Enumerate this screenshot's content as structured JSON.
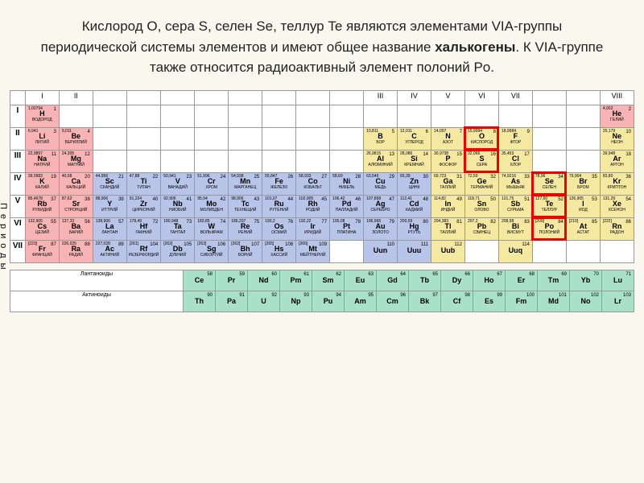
{
  "header": {
    "text_pre": "Кислород O, сера S, селен Se, теллур Te являются элементами VIA-группы периодической системы элементов и имеют общее название ",
    "bold": "халькогены",
    "text_post": ". К VIA-группе также относится радиоактивный элемент полоний Po."
  },
  "groups": [
    "I",
    "II",
    "III",
    "IV",
    "V",
    "VI",
    "VII",
    "VIII"
  ],
  "side_label": "Периоды",
  "lanthanide_label": "Лантаноиды",
  "actinide_label": "Актиноиды",
  "highlighted": [
    "O",
    "S",
    "Se",
    "Te",
    "Po"
  ],
  "colors": {
    "red": "#f8b4b4",
    "yel": "#f5e8a0",
    "blu": "#b8c4e8",
    "grn": "#a8e0c8",
    "highlight": "#e00",
    "bg": "#faf7ee"
  },
  "periods": [
    {
      "n": "I",
      "cells": [
        {
          "s": "H",
          "z": 1,
          "m": "1,00794",
          "n": "ВОДОРОД",
          "c": "red"
        },
        null,
        null,
        null,
        null,
        null,
        null,
        null,
        null,
        null,
        null,
        null,
        null,
        null,
        null,
        null,
        null,
        {
          "s": "He",
          "z": 2,
          "m": "4,002",
          "n": "ГЕЛИЙ",
          "c": "red"
        }
      ]
    },
    {
      "n": "II",
      "cells": [
        {
          "s": "Li",
          "z": 3,
          "m": "6,941",
          "n": "ЛИТИЙ",
          "c": "red"
        },
        {
          "s": "Be",
          "z": 4,
          "m": "9,011",
          "n": "БЕРИЛЛИЙ",
          "c": "red"
        },
        null,
        null,
        null,
        null,
        null,
        null,
        null,
        null,
        {
          "s": "B",
          "z": 5,
          "m": "10,811",
          "n": "БОР",
          "c": "yel"
        },
        {
          "s": "C",
          "z": 6,
          "m": "12,011",
          "n": "УГЛЕРОД",
          "c": "yel"
        },
        {
          "s": "N",
          "z": 7,
          "m": "14,007",
          "n": "АЗОТ",
          "c": "yel"
        },
        {
          "s": "O",
          "z": 8,
          "m": "15,9994",
          "n": "КИСЛОРОД",
          "c": "yel"
        },
        {
          "s": "F",
          "z": 9,
          "m": "18,9984",
          "n": "ФТОР",
          "c": "yel"
        },
        null,
        null,
        {
          "s": "Ne",
          "z": 10,
          "m": "20,179",
          "n": "НЕОН",
          "c": "yel"
        }
      ]
    },
    {
      "n": "III",
      "cells": [
        {
          "s": "Na",
          "z": 11,
          "m": "22,9897",
          "n": "НАТРИЙ",
          "c": "red"
        },
        {
          "s": "Mg",
          "z": 12,
          "m": "24,305",
          "n": "МАГНИЙ",
          "c": "red"
        },
        null,
        null,
        null,
        null,
        null,
        null,
        null,
        null,
        {
          "s": "Al",
          "z": 13,
          "m": "26,9815",
          "n": "АЛЮМИНИЙ",
          "c": "yel"
        },
        {
          "s": "Si",
          "z": 14,
          "m": "28,086",
          "n": "КРЕМНИЙ",
          "c": "yel"
        },
        {
          "s": "P",
          "z": 15,
          "m": "30,9738",
          "n": "ФОСФОР",
          "c": "yel"
        },
        {
          "s": "S",
          "z": 16,
          "m": "32,066",
          "n": "СЕРА",
          "c": "yel"
        },
        {
          "s": "Cl",
          "z": 17,
          "m": "35,453",
          "n": "ХЛОР",
          "c": "yel"
        },
        null,
        null,
        {
          "s": "Ar",
          "z": 18,
          "m": "39,948",
          "n": "АРГОН",
          "c": "yel"
        }
      ]
    },
    {
      "n": "IV",
      "cells": [
        {
          "s": "K",
          "z": 19,
          "m": "39,0983",
          "n": "КАЛИЙ",
          "c": "red"
        },
        {
          "s": "Ca",
          "z": 20,
          "m": "40,08",
          "n": "КАЛЬЦИЙ",
          "c": "red"
        },
        {
          "s": "Sc",
          "z": 21,
          "m": "44,956",
          "n": "СКАНДИЙ",
          "c": "blu"
        },
        {
          "s": "Ti",
          "z": 22,
          "m": "47,88",
          "n": "ТИТАН",
          "c": "blu"
        },
        {
          "s": "V",
          "z": 23,
          "m": "50,941",
          "n": "ВАНАДИЙ",
          "c": "blu"
        },
        {
          "s": "Cr",
          "z": 24,
          "m": "51,996",
          "n": "ХРОМ",
          "c": "blu"
        },
        {
          "s": "Mn",
          "z": 25,
          "m": "54,938",
          "n": "МАРГАНЕЦ",
          "c": "blu"
        },
        {
          "s": "Fe",
          "z": 26,
          "m": "55,847",
          "n": "ЖЕЛЕЗО",
          "c": "blu"
        },
        {
          "s": "Co",
          "z": 27,
          "m": "58,933",
          "n": "КОБАЛЬТ",
          "c": "blu"
        },
        {
          "s": "Ni",
          "z": 28,
          "m": "58,69",
          "n": "НИКЕЛЬ",
          "c": "blu"
        },
        {
          "s": "Cu",
          "z": 29,
          "m": "63,546",
          "n": "МЕДЬ",
          "c": "blu"
        },
        {
          "s": "Zn",
          "z": 30,
          "m": "65,39",
          "n": "ЦИНК",
          "c": "blu"
        },
        {
          "s": "Ga",
          "z": 31,
          "m": "69,723",
          "n": "ГАЛЛИЙ",
          "c": "yel"
        },
        {
          "s": "Ge",
          "z": 32,
          "m": "72,59",
          "n": "ГЕРМАНИЙ",
          "c": "yel"
        },
        {
          "s": "As",
          "z": 33,
          "m": "74,9216",
          "n": "МЫШЬЯК",
          "c": "yel"
        },
        {
          "s": "Se",
          "z": 34,
          "m": "78,96",
          "n": "СЕЛЕН",
          "c": "yel"
        },
        {
          "s": "Br",
          "z": 35,
          "m": "79,904",
          "n": "БРОМ",
          "c": "yel"
        },
        {
          "s": "Kr",
          "z": 36,
          "m": "83,80",
          "n": "КРИПТОН",
          "c": "yel"
        }
      ]
    },
    {
      "n": "V",
      "cells": [
        {
          "s": "Rb",
          "z": 37,
          "m": "85,4678",
          "n": "РУБИДИЙ",
          "c": "red"
        },
        {
          "s": "Sr",
          "z": 38,
          "m": "87,62",
          "n": "СТРОНЦИЙ",
          "c": "red"
        },
        {
          "s": "Y",
          "z": 39,
          "m": "88,906",
          "n": "ИТТРИЙ",
          "c": "blu"
        },
        {
          "s": "Zr",
          "z": 40,
          "m": "91,224",
          "n": "ЦИРКОНИЙ",
          "c": "blu"
        },
        {
          "s": "Nb",
          "z": 41,
          "m": "92,906",
          "n": "НИОБИЙ",
          "c": "blu"
        },
        {
          "s": "Mo",
          "z": 42,
          "m": "95,94",
          "n": "МОЛИБДЕН",
          "c": "blu"
        },
        {
          "s": "Tc",
          "z": 43,
          "m": "98,906",
          "n": "ТЕХНЕЦИЙ",
          "c": "blu"
        },
        {
          "s": "Ru",
          "z": 44,
          "m": "101,07",
          "n": "РУТЕНИЙ",
          "c": "blu"
        },
        {
          "s": "Rh",
          "z": 45,
          "m": "102,905",
          "n": "РОДИЙ",
          "c": "blu"
        },
        {
          "s": "Pd",
          "z": 46,
          "m": "106,42",
          "n": "ПАЛЛАДИЙ",
          "c": "blu"
        },
        {
          "s": "Ag",
          "z": 47,
          "m": "107,868",
          "n": "СЕРЕБРО",
          "c": "blu"
        },
        {
          "s": "Cd",
          "z": 48,
          "m": "112,41",
          "n": "КАДМИЙ",
          "c": "blu"
        },
        {
          "s": "In",
          "z": 49,
          "m": "114,82",
          "n": "ИНДИЙ",
          "c": "yel"
        },
        {
          "s": "Sn",
          "z": 50,
          "m": "118,71",
          "n": "ОЛОВО",
          "c": "yel"
        },
        {
          "s": "Sb",
          "z": 51,
          "m": "121,75",
          "n": "СУРЬМА",
          "c": "yel"
        },
        {
          "s": "Te",
          "z": 52,
          "m": "127,60",
          "n": "ТЕЛЛУР",
          "c": "yel"
        },
        {
          "s": "I",
          "z": 53,
          "m": "126,905",
          "n": "ИОД",
          "c": "yel"
        },
        {
          "s": "Xe",
          "z": 54,
          "m": "131,29",
          "n": "КСЕНОН",
          "c": "yel"
        }
      ]
    },
    {
      "n": "VI",
      "cells": [
        {
          "s": "Cs",
          "z": 55,
          "m": "132,905",
          "n": "ЦЕЗИЙ",
          "c": "red"
        },
        {
          "s": "Ba",
          "z": 56,
          "m": "137,33",
          "n": "БАРИЙ",
          "c": "red"
        },
        {
          "s": "La",
          "z": 57,
          "m": "138,906",
          "n": "ЛАНТАН",
          "c": "blu"
        },
        {
          "s": "Hf",
          "z": 72,
          "m": "178,49",
          "n": "ГАФНИЙ",
          "c": "blu"
        },
        {
          "s": "Ta",
          "z": 73,
          "m": "180,948",
          "n": "ТАНТАЛ",
          "c": "blu"
        },
        {
          "s": "W",
          "z": 74,
          "m": "183,85",
          "n": "ВОЛЬФРАМ",
          "c": "blu"
        },
        {
          "s": "Re",
          "z": 75,
          "m": "186,207",
          "n": "РЕНИЙ",
          "c": "blu"
        },
        {
          "s": "Os",
          "z": 76,
          "m": "190,2",
          "n": "ОСМИЙ",
          "c": "blu"
        },
        {
          "s": "Ir",
          "z": 77,
          "m": "192,22",
          "n": "ИРИДИЙ",
          "c": "blu"
        },
        {
          "s": "Pt",
          "z": 78,
          "m": "195,08",
          "n": "ПЛАТИНА",
          "c": "blu"
        },
        {
          "s": "Au",
          "z": 79,
          "m": "196,966",
          "n": "ЗОЛОТО",
          "c": "blu"
        },
        {
          "s": "Hg",
          "z": 80,
          "m": "200,59",
          "n": "РТУТЬ",
          "c": "blu"
        },
        {
          "s": "Tl",
          "z": 81,
          "m": "204,383",
          "n": "ТАЛЛИЙ",
          "c": "yel"
        },
        {
          "s": "Pb",
          "z": 82,
          "m": "207,2",
          "n": "СВИНЕЦ",
          "c": "yel"
        },
        {
          "s": "Bi",
          "z": 83,
          "m": "208,98",
          "n": "ВИСМУТ",
          "c": "yel"
        },
        {
          "s": "Po",
          "z": 84,
          "m": "[209]",
          "n": "ПОЛОНИЙ",
          "c": "yel"
        },
        {
          "s": "At",
          "z": 85,
          "m": "[210]",
          "n": "АСТАТ",
          "c": "yel"
        },
        {
          "s": "Rn",
          "z": 86,
          "m": "[222]",
          "n": "РАДОН",
          "c": "yel"
        }
      ]
    },
    {
      "n": "VII",
      "cells": [
        {
          "s": "Fr",
          "z": 87,
          "m": "[223]",
          "n": "ФРАНЦИЙ",
          "c": "red"
        },
        {
          "s": "Ra",
          "z": 88,
          "m": "226,025",
          "n": "РАДИЙ",
          "c": "red"
        },
        {
          "s": "Ac",
          "z": 89,
          "m": "227,028",
          "n": "АКТИНИЙ",
          "c": "blu"
        },
        {
          "s": "Rf",
          "z": 104,
          "m": "[261]",
          "n": "РЕЗЕРФОРДИЙ",
          "c": "blu"
        },
        {
          "s": "Db",
          "z": 105,
          "m": "[262]",
          "n": "ДУБНИЙ",
          "c": "blu"
        },
        {
          "s": "Sg",
          "z": 106,
          "m": "[263]",
          "n": "СИБОРГИЙ",
          "c": "blu"
        },
        {
          "s": "Bh",
          "z": 107,
          "m": "[262]",
          "n": "БОРИЙ",
          "c": "blu"
        },
        {
          "s": "Hs",
          "z": 108,
          "m": "[265]",
          "n": "ХАССИЙ",
          "c": "blu"
        },
        {
          "s": "Mt",
          "z": 109,
          "m": "[266]",
          "n": "МЕЙТНЕРИЙ",
          "c": "blu"
        },
        null,
        {
          "s": "Uun",
          "z": 110,
          "m": "",
          "n": "",
          "c": "blu"
        },
        {
          "s": "Uuu",
          "z": 111,
          "m": "",
          "n": "",
          "c": "blu"
        },
        {
          "s": "Uub",
          "z": 112,
          "m": "",
          "n": "",
          "c": "yel"
        },
        null,
        {
          "s": "Uuq",
          "z": 114,
          "m": "",
          "n": "",
          "c": "yel"
        },
        null,
        null,
        null
      ]
    }
  ],
  "lanthanides": [
    {
      "s": "Ce",
      "z": 58,
      "c": "grn"
    },
    {
      "s": "Pr",
      "z": 59,
      "c": "grn"
    },
    {
      "s": "Nd",
      "z": 60,
      "c": "grn"
    },
    {
      "s": "Pm",
      "z": 61,
      "c": "grn"
    },
    {
      "s": "Sm",
      "z": 62,
      "c": "grn"
    },
    {
      "s": "Eu",
      "z": 63,
      "c": "grn"
    },
    {
      "s": "Gd",
      "z": 64,
      "c": "grn"
    },
    {
      "s": "Tb",
      "z": 65,
      "c": "grn"
    },
    {
      "s": "Dy",
      "z": 66,
      "c": "grn"
    },
    {
      "s": "Ho",
      "z": 67,
      "c": "grn"
    },
    {
      "s": "Er",
      "z": 68,
      "c": "grn"
    },
    {
      "s": "Tm",
      "z": 69,
      "c": "grn"
    },
    {
      "s": "Yb",
      "z": 70,
      "c": "grn"
    },
    {
      "s": "Lu",
      "z": 71,
      "c": "grn"
    }
  ],
  "actinides": [
    {
      "s": "Th",
      "z": 90,
      "c": "grn"
    },
    {
      "s": "Pa",
      "z": 91,
      "c": "grn"
    },
    {
      "s": "U",
      "z": 92,
      "c": "grn"
    },
    {
      "s": "Np",
      "z": 93,
      "c": "grn"
    },
    {
      "s": "Pu",
      "z": 94,
      "c": "grn"
    },
    {
      "s": "Am",
      "z": 95,
      "c": "grn"
    },
    {
      "s": "Cm",
      "z": 96,
      "c": "grn"
    },
    {
      "s": "Bk",
      "z": 97,
      "c": "grn"
    },
    {
      "s": "Cf",
      "z": 98,
      "c": "grn"
    },
    {
      "s": "Es",
      "z": 99,
      "c": "grn"
    },
    {
      "s": "Fm",
      "z": 100,
      "c": "grn"
    },
    {
      "s": "Md",
      "z": 101,
      "c": "grn"
    },
    {
      "s": "No",
      "z": 102,
      "c": "grn"
    },
    {
      "s": "Lr",
      "z": 103,
      "c": "grn"
    }
  ]
}
